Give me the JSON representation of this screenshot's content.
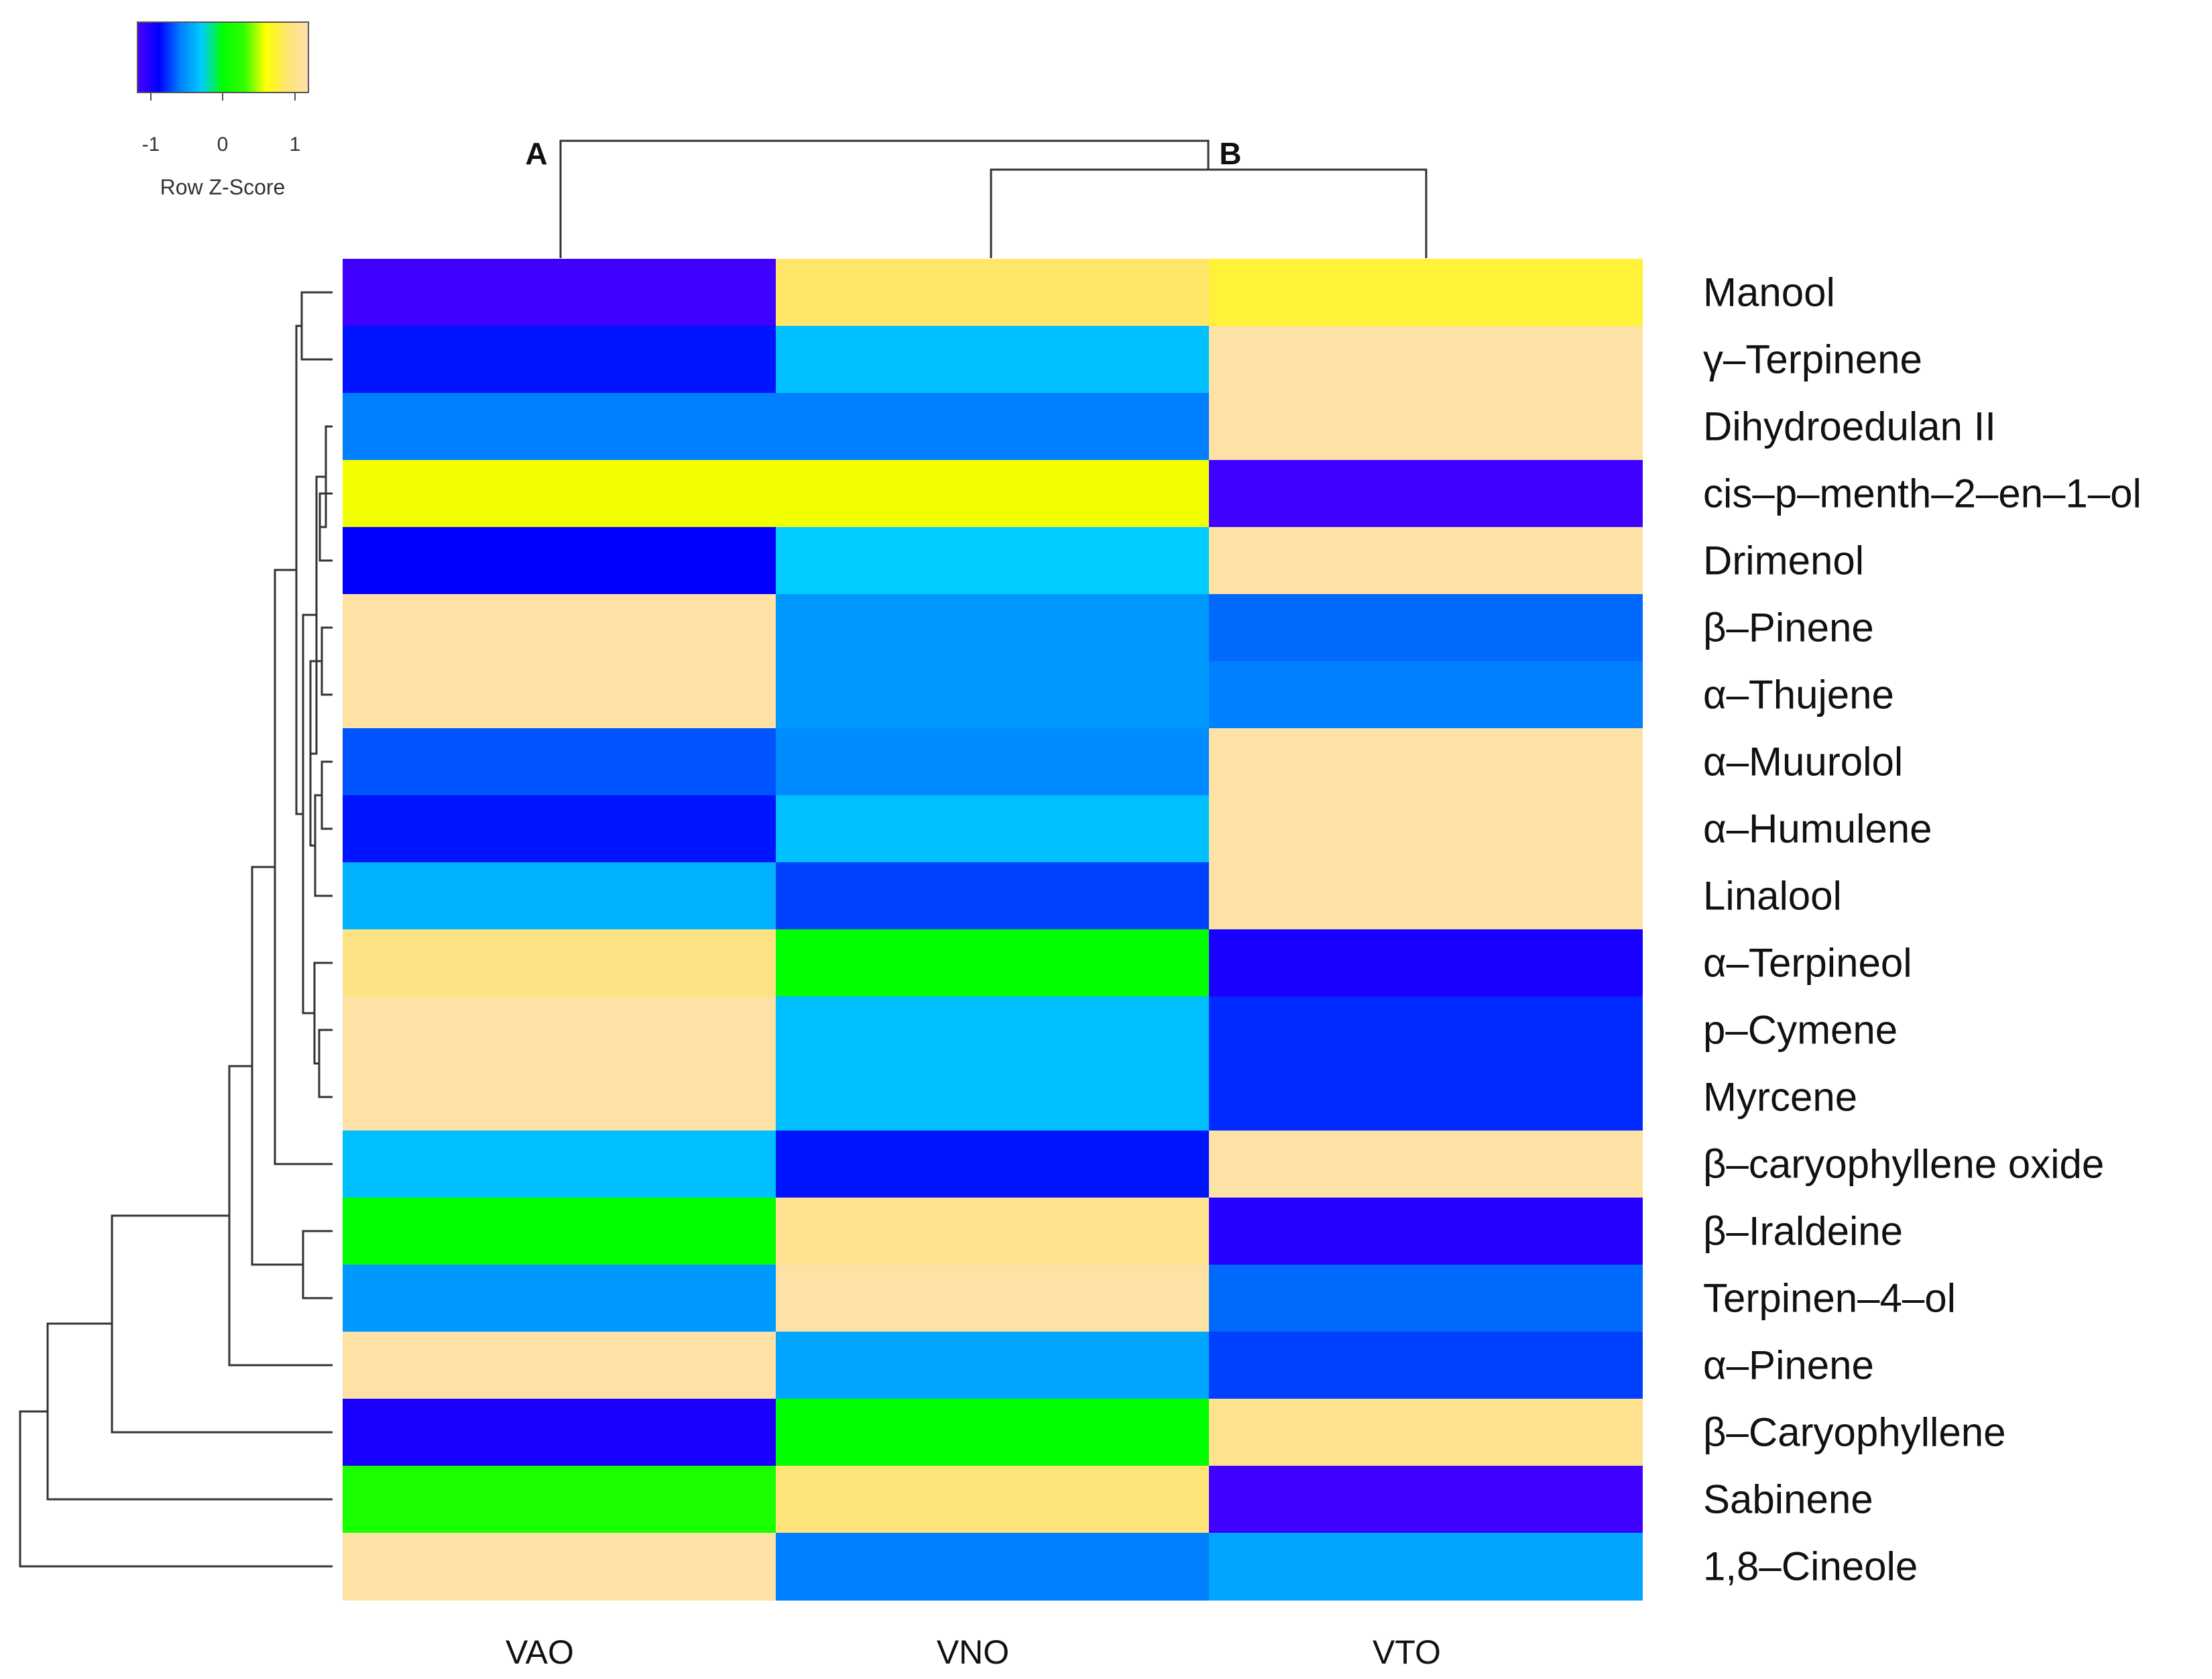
{
  "chart_data": {
    "type": "heatmap",
    "title": "",
    "columns": [
      "VAO",
      "VNO",
      "VTO"
    ],
    "rows": [
      "Manool",
      "γ–Terpinene",
      "Dihydroedulan II",
      "cis–p–menth–2–en–1–ol",
      "Drimenol",
      "β–Pinene",
      "α–Thujene",
      "α–Muurolol",
      "α–Humulene",
      "Linalool",
      "α–Terpineol",
      "p–Cymene",
      "Myrcene",
      "β–caryophyllene oxide",
      "β–Iraldeine",
      "Terpinen–4–ol",
      "α–Pinene",
      "β–Caryophyllene",
      "Sabinene",
      "1,8–Cineole"
    ],
    "values": [
      [
        -1.15,
        0.88,
        0.75
      ],
      [
        -0.85,
        -0.35,
        1.15
      ],
      [
        -0.6,
        -0.6,
        1.15
      ],
      [
        0.58,
        0.58,
        -1.15
      ],
      [
        -0.9,
        -0.3,
        1.15
      ],
      [
        1.15,
        -0.5,
        -0.65
      ],
      [
        1.15,
        -0.5,
        -0.6
      ],
      [
        -0.7,
        -0.55,
        1.15
      ],
      [
        -0.85,
        -0.35,
        1.15
      ],
      [
        -0.4,
        -0.75,
        1.15
      ],
      [
        1.0,
        0.0,
        -1.0
      ],
      [
        1.15,
        -0.35,
        -0.8
      ],
      [
        1.15,
        -0.35,
        -0.8
      ],
      [
        -0.35,
        -0.85,
        1.15
      ],
      [
        0.0,
        1.05,
        -1.05
      ],
      [
        -0.5,
        1.15,
        -0.65
      ],
      [
        1.15,
        -0.45,
        -0.75
      ],
      [
        -1.0,
        0.0,
        1.05
      ],
      [
        0.15,
        0.95,
        -1.15
      ],
      [
        1.15,
        -0.6,
        -0.45
      ]
    ],
    "colorbar": {
      "title": "Row Z-Score",
      "ticks": [
        "-1",
        "0",
        "1"
      ],
      "range": [
        -1.2,
        1.2
      ],
      "colors": [
        "#4b00ff",
        "#0000ff",
        "#007fff",
        "#00ccff",
        "#00ff00",
        "#32ff00",
        "#ffff00",
        "#ffe470",
        "#fde0b0"
      ]
    },
    "column_clusters": {
      "labels": [
        "A",
        "B"
      ],
      "tree": "((VNO, VTO) B, VAO) A"
    },
    "row_dendrogram": "hierarchical clustering of 20 compounds"
  }
}
